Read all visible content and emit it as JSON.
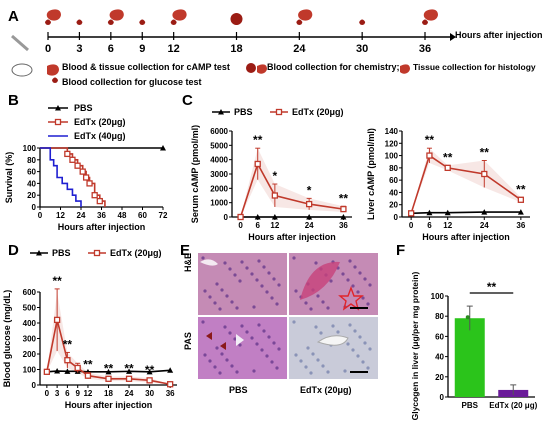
{
  "panel_labels": {
    "a": "A",
    "b": "B",
    "c": "C",
    "d": "D",
    "e": "E",
    "f": "F"
  },
  "timeline": {
    "hours": [
      "0",
      "3",
      "6",
      "9",
      "12",
      "18",
      "24",
      "30",
      "36"
    ],
    "axis_label": "Hours after injection",
    "legend_blood_tissue": "Blood & tissue collection for cAMP test",
    "legend_glucose": "Blood collection for glucose test",
    "legend_chemistry": "Blood collection for chemistry;",
    "legend_histology": "Tissue collection for histology",
    "colors": {
      "axis": "#000000",
      "liver": "#c0392b",
      "drop": "#9b1c14"
    }
  },
  "histology": {
    "row_labels": [
      "H&E",
      "PAS"
    ],
    "col_labels": [
      "PBS",
      "EdTx (20μg)"
    ],
    "colors": {
      "he_bg": "#c58bb5",
      "pas_bg": "#c17fc4",
      "pas_edtx_bg": "#c9cbd9",
      "star": "#e0242a"
    }
  },
  "chart_data": [
    {
      "id": "B",
      "type": "line",
      "subtype": "survival-step",
      "xlabel": "Hours after injection",
      "ylabel": "Survival (%)",
      "xlim": [
        0,
        72
      ],
      "ylim": [
        0,
        100
      ],
      "xticks": [
        0,
        12,
        24,
        36,
        48,
        60,
        72
      ],
      "yticks": [
        0,
        20,
        40,
        60,
        80,
        100
      ],
      "legend_position": "top-right",
      "series": [
        {
          "name": "PBS",
          "color": "#000000",
          "marker": "triangle",
          "points": [
            [
              0,
              100
            ],
            [
              72,
              100
            ]
          ]
        },
        {
          "name": "EdTx (20μg)",
          "color": "#c0392b",
          "marker": "square",
          "points": [
            [
              0,
              100
            ],
            [
              16,
              100
            ],
            [
              16,
              90
            ],
            [
              19,
              90
            ],
            [
              19,
              80
            ],
            [
              22,
              80
            ],
            [
              22,
              70
            ],
            [
              25,
              70
            ],
            [
              25,
              60
            ],
            [
              27,
              60
            ],
            [
              27,
              50
            ],
            [
              29,
              50
            ],
            [
              29,
              40
            ],
            [
              32,
              40
            ],
            [
              32,
              20
            ],
            [
              35,
              20
            ],
            [
              35,
              10
            ],
            [
              38,
              10
            ],
            [
              38,
              0
            ]
          ]
        },
        {
          "name": "EdTx (40μg)",
          "color": "#1f1fd1",
          "marker": "none",
          "points": [
            [
              0,
              100
            ],
            [
              6,
              100
            ],
            [
              6,
              80
            ],
            [
              8,
              80
            ],
            [
              8,
              70
            ],
            [
              10,
              70
            ],
            [
              10,
              50
            ],
            [
              13,
              50
            ],
            [
              13,
              40
            ],
            [
              16,
              40
            ],
            [
              16,
              30
            ],
            [
              19,
              30
            ],
            [
              19,
              20
            ],
            [
              21,
              20
            ],
            [
              21,
              10
            ],
            [
              24,
              10
            ],
            [
              24,
              0
            ]
          ]
        }
      ]
    },
    {
      "id": "C1",
      "type": "line",
      "xlabel": "Hours after injection",
      "ylabel": "Serum cAMP (pmol/ml)",
      "xlim": [
        -3,
        39
      ],
      "ylim": [
        0,
        6000
      ],
      "xticks": [
        0,
        6,
        12,
        24,
        36
      ],
      "yticks": [
        0,
        1000,
        2000,
        3000,
        4000,
        5000,
        6000
      ],
      "x": [
        0,
        6,
        12,
        24,
        36
      ],
      "series": [
        {
          "name": "PBS",
          "color": "#000000",
          "values": [
            0,
            0,
            0,
            0,
            0
          ],
          "errors": [
            0,
            0,
            0,
            0,
            0
          ]
        },
        {
          "name": "EdTx (20μg)",
          "color": "#c0392b",
          "values": [
            0,
            3700,
            1500,
            900,
            550
          ],
          "errors": [
            0,
            1100,
            800,
            400,
            200
          ]
        }
      ],
      "annotations": [
        {
          "x": 6,
          "text": "**"
        },
        {
          "x": 12,
          "text": "*"
        },
        {
          "x": 24,
          "text": "*"
        },
        {
          "x": 36,
          "text": "**"
        }
      ]
    },
    {
      "id": "C2",
      "type": "line",
      "xlabel": "Hours after injection",
      "ylabel": "Liver cAMP (pmol/ml)",
      "xlim": [
        -3,
        39
      ],
      "ylim": [
        0,
        140
      ],
      "xticks": [
        0,
        6,
        12,
        24,
        36
      ],
      "yticks": [
        0,
        20,
        40,
        60,
        80,
        100,
        120,
        140
      ],
      "x": [
        0,
        6,
        12,
        24,
        36
      ],
      "series": [
        {
          "name": "PBS",
          "color": "#000000",
          "values": [
            6,
            7,
            7,
            8,
            8
          ],
          "errors": [
            0,
            0,
            0,
            0,
            0
          ]
        },
        {
          "name": "EdTx (20μg)",
          "color": "#c0392b",
          "values": [
            6,
            100,
            80,
            70,
            28
          ],
          "errors": [
            0,
            12,
            4,
            22,
            4
          ]
        }
      ],
      "annotations": [
        {
          "x": 6,
          "text": "**"
        },
        {
          "x": 12,
          "text": "**"
        },
        {
          "x": 24,
          "text": "**"
        },
        {
          "x": 36,
          "text": "**"
        }
      ]
    },
    {
      "id": "D",
      "type": "line",
      "xlabel": "Hours after injection",
      "ylabel": "Blood glucose (mg/dL)",
      "xlim": [
        -2,
        38
      ],
      "ylim": [
        0,
        600
      ],
      "xticks": [
        0,
        3,
        6,
        9,
        12,
        18,
        24,
        30,
        36
      ],
      "yticks": [
        0,
        100,
        200,
        300,
        400,
        500,
        600
      ],
      "x": [
        0,
        3,
        6,
        9,
        12,
        18,
        24,
        30,
        36
      ],
      "series": [
        {
          "name": "PBS",
          "color": "#000000",
          "values": [
            85,
            90,
            88,
            88,
            85,
            85,
            88,
            85,
            95
          ],
          "errors": [
            0,
            0,
            0,
            0,
            0,
            0,
            0,
            0,
            0
          ]
        },
        {
          "name": "EdTx (20μg)",
          "color": "#c0392b",
          "values": [
            85,
            420,
            160,
            110,
            60,
            40,
            40,
            30,
            5
          ],
          "errors": [
            0,
            200,
            50,
            30,
            20,
            15,
            15,
            15,
            0
          ]
        }
      ],
      "annotations": [
        {
          "x": 3,
          "text": "**"
        },
        {
          "x": 6,
          "text": "**"
        },
        {
          "x": 12,
          "text": "**"
        },
        {
          "x": 18,
          "text": "**"
        },
        {
          "x": 24,
          "text": "**"
        },
        {
          "x": 30,
          "text": "**"
        }
      ]
    },
    {
      "id": "F",
      "type": "bar",
      "ylabel": "Glycogen in liver (μg/per mg protein)",
      "ylim": [
        0,
        100
      ],
      "yticks": [
        0,
        20,
        40,
        60,
        80,
        100
      ],
      "categories": [
        "PBS",
        "EdTx (20 μg)"
      ],
      "values": [
        78,
        7
      ],
      "errors": [
        12,
        5
      ],
      "colors": [
        "#2bc41b",
        "#6a1b99"
      ],
      "significance": "**"
    }
  ]
}
